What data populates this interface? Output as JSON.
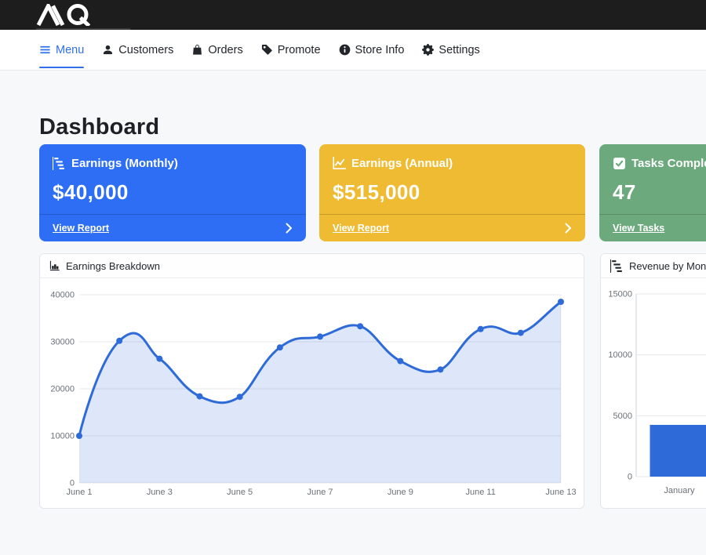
{
  "topbar": {
    "logo_alt": "MQ"
  },
  "nav": {
    "items": [
      {
        "id": "menu",
        "label": "Menu",
        "icon": "hamburger-icon",
        "active": true
      },
      {
        "id": "customers",
        "label": "Customers",
        "icon": "person-icon",
        "active": false
      },
      {
        "id": "orders",
        "label": "Orders",
        "icon": "bag-icon",
        "active": false
      },
      {
        "id": "promote",
        "label": "Promote",
        "icon": "tag-icon",
        "active": false
      },
      {
        "id": "store-info",
        "label": "Store Info",
        "icon": "info-icon",
        "active": false
      },
      {
        "id": "settings",
        "label": "Settings",
        "icon": "gear-icon",
        "active": false
      }
    ]
  },
  "page": {
    "title": "Dashboard"
  },
  "stat_cards": [
    {
      "id": "earnings-monthly",
      "title": "Earnings (Monthly)",
      "value": "$40,000",
      "link_label": "View Report",
      "color": "#2d6ef5",
      "icon": "bar-chart-steps-icon",
      "chevron": true
    },
    {
      "id": "earnings-annual",
      "title": "Earnings (Annual)",
      "value": "$515,000",
      "link_label": "View Report",
      "color": "#eebb33",
      "icon": "line-graph-icon",
      "chevron": true
    },
    {
      "id": "tasks-completed",
      "title": "Tasks Completed",
      "value": "47",
      "link_label": "View Tasks",
      "color": "#6caa7d",
      "icon": "check-square-icon",
      "chevron": true
    }
  ],
  "chart_data": [
    {
      "type": "line",
      "title": "Earnings Breakdown",
      "header_icon": "bar-chart-fill-icon",
      "x": [
        "June 1",
        "June 2",
        "June 3",
        "June 4",
        "June 5",
        "June 6",
        "June 7",
        "June 8",
        "June 9",
        "June 10",
        "June 11",
        "June 12",
        "June 13"
      ],
      "values": [
        10000,
        30200,
        26400,
        18400,
        18300,
        28800,
        31100,
        33300,
        25900,
        24100,
        32700,
        31900,
        38500
      ],
      "x_tick_labels": [
        "June 1",
        "June 3",
        "June 5",
        "June 7",
        "June 9",
        "June 11",
        "June 13"
      ],
      "ylim": [
        0,
        40000
      ],
      "yticks": [
        0,
        10000,
        20000,
        30000,
        40000
      ],
      "xlabel": "",
      "ylabel": "",
      "grid": true,
      "legend": false,
      "line_color": "#2e6bd9",
      "point_color": "#2e6bd9",
      "fill_color": "rgba(46,107,217,0.16)"
    },
    {
      "type": "bar",
      "title": "Revenue by Month",
      "header_icon": "bar-chart-steps-icon",
      "categories": [
        "January"
      ],
      "values": [
        4250
      ],
      "ylim": [
        0,
        15000
      ],
      "yticks": [
        0,
        5000,
        10000,
        15000
      ],
      "xlabel": "",
      "ylabel": "",
      "grid": true,
      "legend": false,
      "bar_color": "#2e6bd9"
    }
  ],
  "colors": {
    "topbar_bg": "#1d1d1d",
    "page_bg": "#f7f8fa",
    "nav_active": "#2f70e8",
    "card_blue": "#2d6ef5",
    "card_yellow": "#eebb33",
    "card_green": "#6caa7d",
    "chart_blue": "#2e6bd9",
    "gridline": "#e7e7e7"
  }
}
